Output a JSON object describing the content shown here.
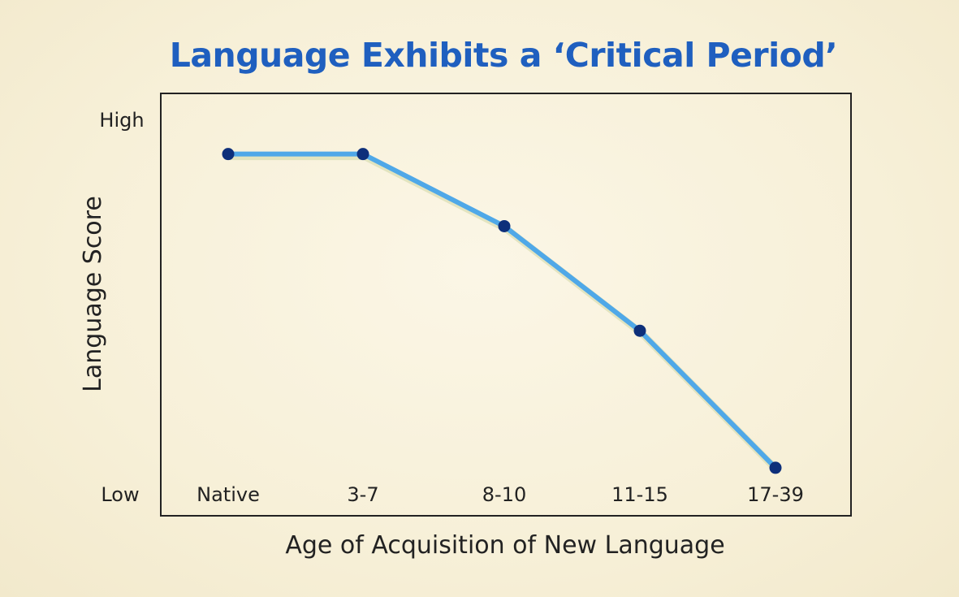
{
  "chart_data": {
    "type": "line",
    "title": "Language Exhibits a ‘Critical Period’",
    "xlabel": "Age of Acquisition of New Language",
    "ylabel": "Language Score",
    "categories": [
      "Native",
      "3-7",
      "8-10",
      "11-15",
      "17-39"
    ],
    "y_tick_labels": {
      "high": "High",
      "low": "Low"
    },
    "ylim": [
      0,
      100
    ],
    "series": [
      {
        "values": [
          94,
          94,
          74,
          45,
          7
        ]
      }
    ],
    "grid": false,
    "legend": "none"
  },
  "colors": {
    "title": "#1f5fbf",
    "line": "#4fa8e8",
    "marker": "#0d2f7a",
    "frame": "#222222",
    "text": "#222222"
  }
}
